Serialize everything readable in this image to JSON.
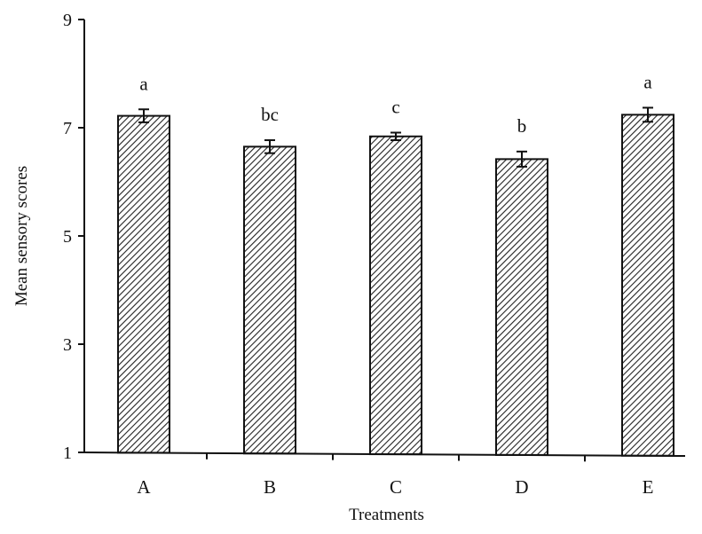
{
  "chart_data": {
    "type": "bar",
    "title": "",
    "xlabel": "Treatments",
    "ylabel": "Mean sensory scores",
    "categories": [
      "A",
      "B",
      "C",
      "D",
      "E"
    ],
    "values": [
      7.22,
      6.65,
      6.84,
      6.42,
      7.24
    ],
    "errors": [
      0.12,
      0.12,
      0.07,
      0.14,
      0.13
    ],
    "significance_labels": [
      "a",
      "bc",
      "c",
      "b",
      "a"
    ],
    "ylim": [
      1,
      9
    ],
    "yticks": [
      1,
      3,
      5,
      7,
      9
    ],
    "grid": false,
    "bar_fill": "diagonal-hatch",
    "colors": {
      "bar_stroke": "#111111",
      "hatch": "#222222",
      "axis": "#111111",
      "background": "#ffffff"
    }
  }
}
